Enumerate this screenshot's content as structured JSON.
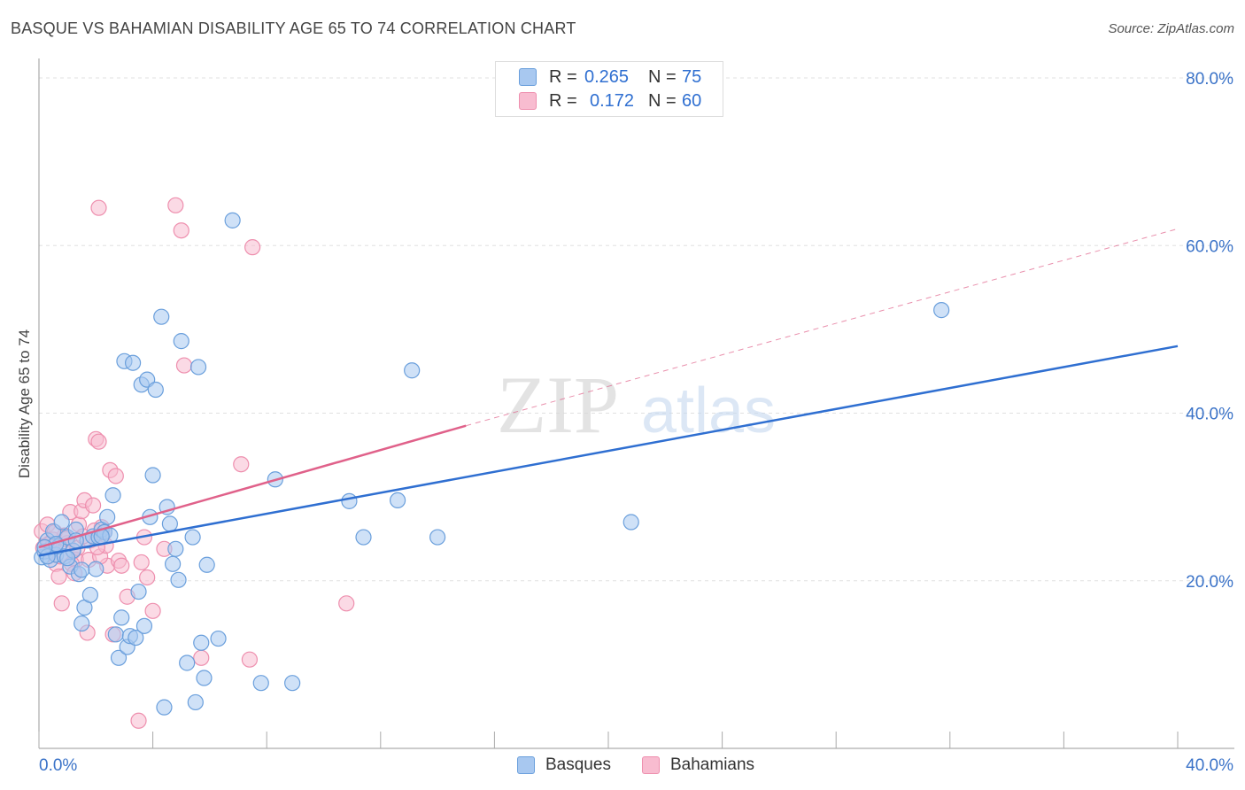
{
  "title": "BASQUE VS BAHAMIAN DISABILITY AGE 65 TO 74 CORRELATION CHART",
  "source": "Source: ZipAtlas.com",
  "watermark": {
    "zip": "ZIP",
    "atlas": "atlas"
  },
  "legend": {
    "rows": [
      {
        "r_label": "R =",
        "r_value": "0.265",
        "n_label": "N =",
        "n_value": "75"
      },
      {
        "r_label": "R =",
        "r_value": "0.172",
        "n_label": "N =",
        "n_value": "60"
      }
    ]
  },
  "bottom_legend": {
    "basques": "Basques",
    "bahamians": "Bahamians"
  },
  "colors": {
    "basques_fill": "#a8c8f0",
    "basques_stroke": "#6a9fdc",
    "basques_line": "#2f6fd1",
    "bahamians_fill": "#f8bcd0",
    "bahamians_stroke": "#ee8fae",
    "bahamians_line": "#e0618a",
    "axis_text": "#3b73c8",
    "grid": "#e0e0e0"
  },
  "chart_data": {
    "type": "scatter",
    "title": "BASQUE VS BAHAMIAN DISABILITY AGE 65 TO 74 CORRELATION CHART",
    "xlabel": "",
    "ylabel": "Disability Age 65 to 74",
    "xlim": [
      0,
      40
    ],
    "ylim": [
      0,
      80
    ],
    "x_tick_labels": [
      "0.0%",
      "40.0%"
    ],
    "y_ticks": [
      20,
      40,
      60,
      80
    ],
    "y_tick_labels": [
      "20.0%",
      "40.0%",
      "60.0%",
      "80.0%"
    ],
    "grid": true,
    "legend_position": "top-center",
    "series": [
      {
        "name": "Basques",
        "r": 0.265,
        "n": 75,
        "trend": {
          "x": [
            0,
            40
          ],
          "y": [
            23.0,
            48.0
          ],
          "style": "solid"
        },
        "points": [
          [
            0.1,
            22.8
          ],
          [
            0.2,
            23.5
          ],
          [
            0.3,
            24.8
          ],
          [
            0.4,
            22.5
          ],
          [
            0.5,
            25.9
          ],
          [
            0.6,
            23.1
          ],
          [
            0.7,
            24.1
          ],
          [
            0.8,
            27.0
          ],
          [
            0.9,
            22.9
          ],
          [
            1.0,
            25.2
          ],
          [
            1.1,
            21.7
          ],
          [
            1.2,
            23.6
          ],
          [
            1.3,
            26.1
          ],
          [
            1.4,
            20.8
          ],
          [
            1.5,
            14.9
          ],
          [
            1.6,
            16.8
          ],
          [
            1.7,
            24.8
          ],
          [
            1.8,
            18.3
          ],
          [
            1.9,
            25.3
          ],
          [
            2.0,
            21.4
          ],
          [
            2.1,
            25.2
          ],
          [
            2.2,
            26.1
          ],
          [
            2.3,
            25.8
          ],
          [
            2.4,
            27.6
          ],
          [
            2.5,
            25.4
          ],
          [
            2.6,
            30.2
          ],
          [
            2.7,
            13.6
          ],
          [
            2.8,
            10.8
          ],
          [
            2.9,
            15.6
          ],
          [
            3.0,
            46.2
          ],
          [
            3.1,
            12.1
          ],
          [
            3.2,
            13.4
          ],
          [
            3.3,
            46.0
          ],
          [
            3.4,
            13.2
          ],
          [
            3.5,
            18.7
          ],
          [
            3.6,
            43.4
          ],
          [
            3.7,
            14.6
          ],
          [
            3.8,
            44.0
          ],
          [
            3.9,
            27.6
          ],
          [
            4.0,
            32.6
          ],
          [
            4.1,
            42.8
          ],
          [
            4.3,
            51.5
          ],
          [
            4.4,
            4.9
          ],
          [
            4.5,
            28.8
          ],
          [
            4.6,
            26.8
          ],
          [
            4.7,
            22.0
          ],
          [
            4.8,
            23.8
          ],
          [
            4.9,
            20.1
          ],
          [
            5.0,
            48.6
          ],
          [
            5.2,
            10.2
          ],
          [
            5.4,
            25.2
          ],
          [
            5.5,
            5.5
          ],
          [
            5.6,
            45.5
          ],
          [
            5.7,
            12.6
          ],
          [
            5.8,
            8.4
          ],
          [
            5.9,
            21.9
          ],
          [
            6.3,
            13.1
          ],
          [
            6.8,
            63.0
          ],
          [
            7.8,
            7.8
          ],
          [
            8.3,
            32.1
          ],
          [
            8.9,
            7.8
          ],
          [
            10.9,
            29.5
          ],
          [
            11.4,
            25.2
          ],
          [
            12.6,
            29.6
          ],
          [
            13.1,
            45.1
          ],
          [
            14.0,
            25.2
          ],
          [
            20.8,
            27.0
          ],
          [
            31.7,
            52.3
          ],
          [
            0.3,
            22.9
          ],
          [
            0.6,
            24.4
          ],
          [
            1.0,
            22.7
          ],
          [
            1.5,
            21.3
          ],
          [
            2.2,
            25.3
          ],
          [
            0.2,
            24.0
          ],
          [
            1.3,
            24.8
          ]
        ]
      },
      {
        "name": "Bahamians",
        "r": 0.172,
        "n": 60,
        "trend": {
          "x": [
            0,
            15,
            40
          ],
          "y": [
            24.0,
            38.5,
            62.0
          ],
          "style_segments": [
            "solid",
            "dashed"
          ]
        },
        "points": [
          [
            0.1,
            25.9
          ],
          [
            0.2,
            24.1
          ],
          [
            0.3,
            26.7
          ],
          [
            0.4,
            23.5
          ],
          [
            0.5,
            24.9
          ],
          [
            0.6,
            22.0
          ],
          [
            0.7,
            20.5
          ],
          [
            0.8,
            17.3
          ],
          [
            0.9,
            25.4
          ],
          [
            1.0,
            24.5
          ],
          [
            1.1,
            28.2
          ],
          [
            1.2,
            23.5
          ],
          [
            1.3,
            22.5
          ],
          [
            1.4,
            26.7
          ],
          [
            1.5,
            28.3
          ],
          [
            1.6,
            29.6
          ],
          [
            1.7,
            13.8
          ],
          [
            1.8,
            24.8
          ],
          [
            1.9,
            29.0
          ],
          [
            2.0,
            36.9
          ],
          [
            2.1,
            36.6
          ],
          [
            2.2,
            26.4
          ],
          [
            2.3,
            25.8
          ],
          [
            2.4,
            21.8
          ],
          [
            2.5,
            33.2
          ],
          [
            2.6,
            13.6
          ],
          [
            2.7,
            32.5
          ],
          [
            2.8,
            22.4
          ],
          [
            2.9,
            21.8
          ],
          [
            3.1,
            18.1
          ],
          [
            3.5,
            3.3
          ],
          [
            3.6,
            22.2
          ],
          [
            3.7,
            25.2
          ],
          [
            3.8,
            20.4
          ],
          [
            4.0,
            16.4
          ],
          [
            4.4,
            23.8
          ],
          [
            4.8,
            64.8
          ],
          [
            5.0,
            61.8
          ],
          [
            5.1,
            45.7
          ],
          [
            5.7,
            10.8
          ],
          [
            7.1,
            33.9
          ],
          [
            7.4,
            10.6
          ],
          [
            7.5,
            59.8
          ],
          [
            10.8,
            17.3
          ],
          [
            0.15,
            23.9
          ],
          [
            0.35,
            24.4
          ],
          [
            0.55,
            25.8
          ],
          [
            0.75,
            22.9
          ],
          [
            0.95,
            25.0
          ],
          [
            1.15,
            22.0
          ],
          [
            1.35,
            23.9
          ],
          [
            1.55,
            25.3
          ],
          [
            1.75,
            22.5
          ],
          [
            1.95,
            26.0
          ],
          [
            2.15,
            22.9
          ],
          [
            2.35,
            24.2
          ],
          [
            0.45,
            24.0
          ],
          [
            1.25,
            20.9
          ],
          [
            2.05,
            24.0
          ],
          [
            2.1,
            64.5
          ]
        ]
      }
    ]
  }
}
